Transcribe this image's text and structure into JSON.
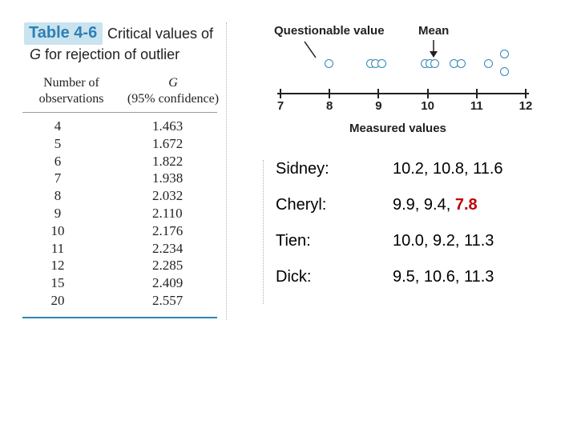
{
  "table": {
    "badge": "Table 4-6",
    "title_line1": "Critical values of",
    "title_g": "G",
    "title_line2_rest": " for rejection of outlier",
    "col1_line1": "Number of",
    "col1_line2": "observations",
    "col2_line1": "G",
    "col2_line2": "(95% confidence)",
    "rows": [
      {
        "n": "4",
        "g": "1.463"
      },
      {
        "n": "5",
        "g": "1.672"
      },
      {
        "n": "6",
        "g": "1.822"
      },
      {
        "n": "7",
        "g": "1.938"
      },
      {
        "n": "8",
        "g": "2.032"
      },
      {
        "n": "9",
        "g": "2.110"
      },
      {
        "n": "10",
        "g": "2.176"
      },
      {
        "n": "11",
        "g": "2.234"
      },
      {
        "n": "12",
        "g": "2.285"
      },
      {
        "n": "15",
        "g": "2.409"
      },
      {
        "n": "20",
        "g": "2.557"
      }
    ]
  },
  "figure": {
    "questionable_label": "Questionable value",
    "mean_label": "Mean",
    "axis_title": "Measured values",
    "ticks": [
      "7",
      "8",
      "9",
      "10",
      "11",
      "12"
    ],
    "axis_min": 7,
    "axis_max": 12,
    "points": [
      8,
      8.85,
      8.95,
      9.07,
      9.95,
      10.05,
      10.15,
      10.55,
      10.7,
      11.25,
      11.58
    ],
    "point_color": "#2f86b8"
  },
  "data": [
    {
      "name": "Sidney:",
      "values": "10.2, 10.8, 11.6"
    },
    {
      "name": "Cheryl:",
      "values": "9.9, 9.4, ",
      "outlier": "7.8"
    },
    {
      "name": "Tien:",
      "values": "10.0, 9.2, 11.3"
    },
    {
      "name": "Dick:",
      "values": "9.5, 10.6, 11.3"
    }
  ],
  "outlier_color": "#c00000"
}
